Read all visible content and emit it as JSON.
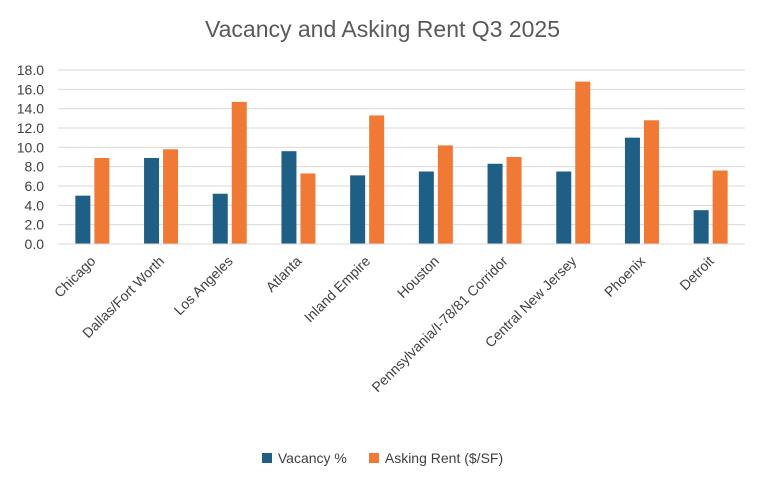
{
  "chart_data": {
    "type": "bar",
    "title": "Vacancy and Asking Rent Q3 2025",
    "xlabel": "",
    "ylabel": "",
    "ylim": [
      0,
      18
    ],
    "yticks": [
      "0.0",
      "2.0",
      "4.0",
      "6.0",
      "8.0",
      "10.0",
      "12.0",
      "14.0",
      "16.0",
      "18.0"
    ],
    "grid": true,
    "legend_position": "bottom",
    "categories": [
      "Chicago",
      "Dallas/Fort Worth",
      "Los Angeles",
      "Atlanta",
      "Inland Empire",
      "Houston",
      "Pennsylvania/I-78/81 Corridor",
      "Central New Jersey",
      "Phoenix",
      "Detroit"
    ],
    "series": [
      {
        "name": "Vacancy %",
        "color": "#1f5f86",
        "values": [
          5.0,
          8.9,
          5.2,
          9.6,
          7.1,
          7.5,
          8.3,
          7.5,
          11.0,
          3.5
        ]
      },
      {
        "name": "Asking Rent ($/SF)",
        "color": "#ef7935",
        "values": [
          8.9,
          9.8,
          14.7,
          7.3,
          13.3,
          10.2,
          9.0,
          16.8,
          12.8,
          7.6
        ]
      }
    ]
  }
}
